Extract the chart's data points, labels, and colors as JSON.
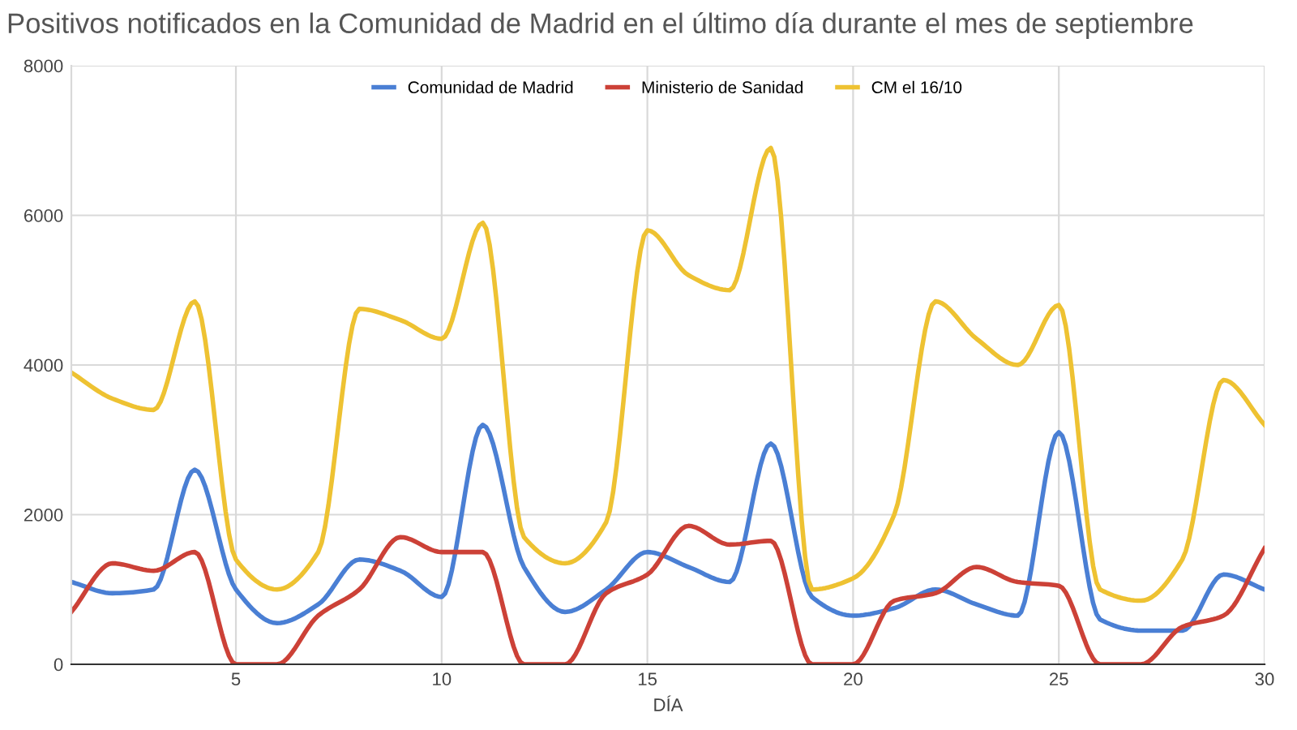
{
  "chart_data": {
    "type": "line",
    "title": "Positivos notificados en la Comunidad de Madrid en el último día durante el mes de septiembre",
    "xlabel": "DÍA",
    "x": [
      1,
      2,
      3,
      4,
      5,
      6,
      7,
      8,
      9,
      10,
      11,
      12,
      13,
      14,
      15,
      16,
      17,
      18,
      19,
      20,
      21,
      22,
      23,
      24,
      25,
      26,
      27,
      28,
      29,
      30
    ],
    "series": [
      {
        "name": "Comunidad de Madrid",
        "color": "#4a7fd4",
        "values": [
          1100,
          950,
          1000,
          2600,
          1000,
          550,
          800,
          1400,
          1250,
          900,
          3200,
          1300,
          700,
          1000,
          1500,
          1300,
          1100,
          2950,
          900,
          650,
          750,
          1000,
          800,
          650,
          3100,
          600,
          450,
          450,
          1200,
          1000
        ]
      },
      {
        "name": "Ministerio de Sanidad",
        "color": "#cc4137",
        "values": [
          700,
          1350,
          1250,
          1500,
          0,
          0,
          650,
          1000,
          1700,
          1500,
          1500,
          0,
          0,
          950,
          1200,
          1850,
          1600,
          1650,
          0,
          0,
          850,
          950,
          1300,
          1100,
          1050,
          0,
          0,
          500,
          650,
          1550
        ]
      },
      {
        "name": "CM el 16/10",
        "color": "#eec232",
        "values": [
          3900,
          3550,
          3400,
          4850,
          1400,
          1000,
          1500,
          4750,
          4600,
          4350,
          5900,
          1700,
          1350,
          1900,
          5800,
          5200,
          5000,
          6900,
          1000,
          1150,
          2000,
          4850,
          4350,
          4000,
          4800,
          1000,
          850,
          1400,
          3800,
          3200
        ]
      }
    ],
    "xlim": [
      1,
      30
    ],
    "xticks": [
      5,
      10,
      15,
      20,
      25,
      30
    ],
    "ylim": [
      0,
      8000
    ],
    "yticks": [
      0,
      2000,
      4000,
      6000,
      8000
    ],
    "grid": true,
    "legend": "top",
    "marker": "none",
    "line_style": "solid"
  }
}
